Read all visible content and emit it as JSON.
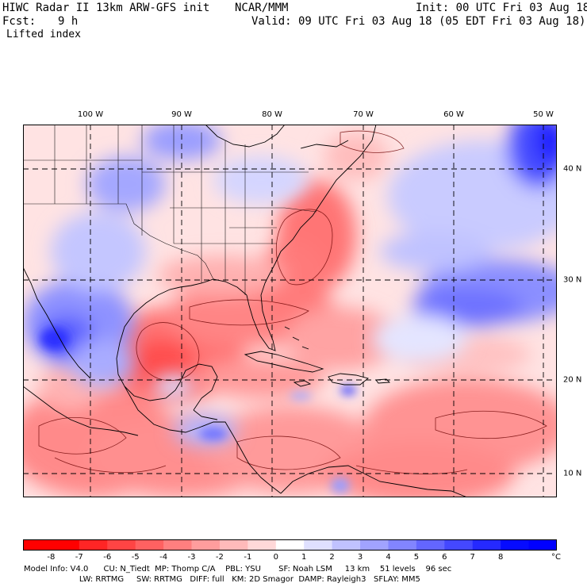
{
  "header": {
    "title": "HIWC Radar II 13km ARW-GFS init",
    "org": "NCAR/MMM",
    "init": "Init: 00 UTC Fri 03 Aug 18",
    "fcst_label": "Fcst:",
    "fcst_value": "9 h",
    "valid": "Valid: 09 UTC Fri 03 Aug 18 (05 EDT Fri 03 Aug 18)",
    "field": "Lifted index"
  },
  "map": {
    "lon_labels": [
      "100 W",
      "90 W",
      "80 W",
      "70 W",
      "60 W",
      "50 W"
    ],
    "lat_labels": [
      "40 N",
      "30 N",
      "20 N",
      "10 N"
    ],
    "colors": {
      "land_lines": "#000000",
      "grid": "#000000",
      "contour": "#6b0000",
      "stable": "#2b2bdc",
      "unstable": "#e83030"
    }
  },
  "colorbar": {
    "unit": "°C",
    "labels": [
      "-8",
      "-7",
      "-6",
      "-5",
      "-4",
      "-3",
      "-2",
      "-1",
      "0",
      "1",
      "2",
      "3",
      "4",
      "5",
      "6",
      "7",
      "8"
    ],
    "colors": [
      "#ff0000",
      "#ff2525",
      "#ff4444",
      "#ff6161",
      "#ff7f7f",
      "#ff9d9d",
      "#ffbaba",
      "#ffd8d8",
      "#ffffff",
      "#dfe0ff",
      "#c0c2ff",
      "#a1a3ff",
      "#8285ff",
      "#6366ff",
      "#4448ff",
      "#2529ff",
      "#060bff"
    ]
  },
  "footer": {
    "line1": "Model Info: V4.0      CU: N_Tiedt  MP: Thomp C/A    PBL: YSU       SF: Noah LSM     13 km    51 levels    96 sec",
    "line2": "                      LW: RRTMG     SW: RRTMG   DIFF: full   KM: 2D Smagor  DAMP: Rayleigh3   SFLAY: MM5"
  }
}
